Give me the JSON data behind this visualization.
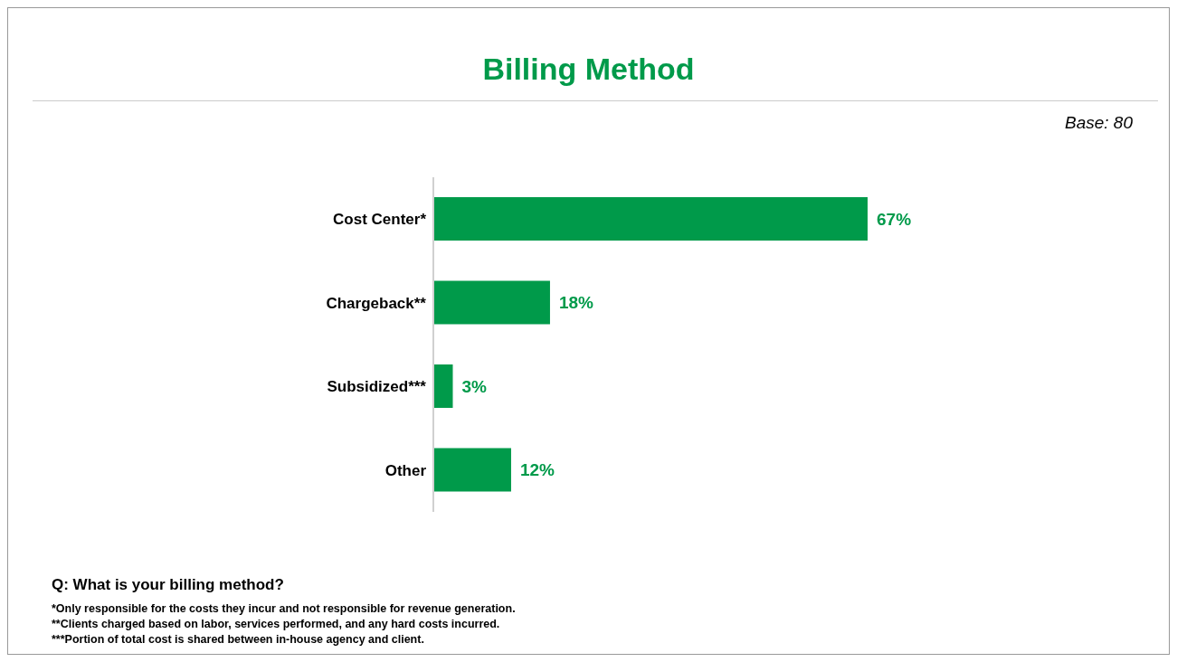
{
  "chart_data": {
    "type": "bar",
    "orientation": "horizontal",
    "title": "Billing Method",
    "categories": [
      "Cost Center*",
      "Chargeback**",
      "Subsidized***",
      "Other"
    ],
    "values": [
      67,
      18,
      3,
      12
    ],
    "color": "#009a4a",
    "value_labels": [
      "67%",
      "18%",
      "3%",
      "12%"
    ],
    "grid": false,
    "legend": false,
    "tick_labels": "y",
    "annotations": [
      "Base: 80",
      "Q: What is your billing method?",
      "*Only responsible for the costs they incur and not responsible for revenue generation.",
      "**Clients charged based on labor, services performed, and any hard costs incurred.",
      "***Portion of total cost is shared between in-house agency and client."
    ]
  }
}
